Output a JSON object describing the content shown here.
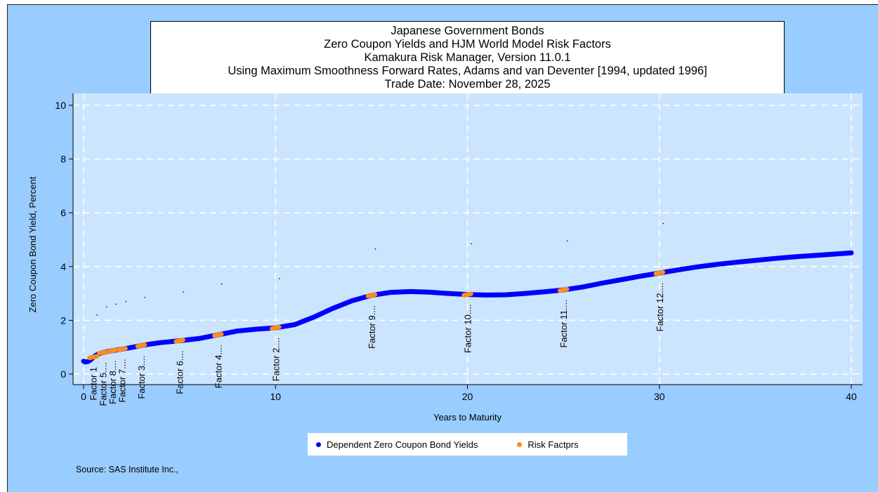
{
  "title_lines": [
    "Japanese Government Bonds",
    "Zero Coupon Yields and HJM World Model Risk Factors",
    "Kamakura Risk Manager, Version 11.0.1",
    "Using Maximum Smoothness Forward Rates, Adams and van Deventer [1994, updated 1996]",
    "Trade Date: November 28, 2025"
  ],
  "source": "Source: SAS Institute Inc.,",
  "colors": {
    "page_background": "#99ccff",
    "plot_background": "#cce5ff",
    "grid": "#ffffff",
    "curve": "#0000ff",
    "factor": "#ff8c1a"
  },
  "chart_data": {
    "type": "line",
    "xlabel": "Years to Maturity",
    "ylabel": "Zero Coupon Bond Yield, Percent",
    "xlim": [
      0,
      40
    ],
    "ylim": [
      0,
      10
    ],
    "x_ticks": [
      0,
      10,
      20,
      30,
      40
    ],
    "y_ticks": [
      0,
      2,
      4,
      6,
      8,
      10
    ],
    "grid": true,
    "legend_position": "bottom",
    "series": [
      {
        "name": "Dependent Zero Coupon Bond Yields",
        "color": "#0000ff",
        "x": [
          0,
          0.1,
          0.25,
          0.4,
          0.6,
          0.8,
          1.0,
          1.25,
          1.5,
          1.75,
          2.0,
          2.5,
          3.0,
          3.5,
          4.0,
          5.0,
          6.0,
          7.0,
          8.0,
          9.0,
          10.0,
          11.0,
          12.0,
          13.0,
          14.0,
          15.0,
          16.0,
          17.0,
          18.0,
          19.0,
          20.0,
          21.0,
          22.0,
          23.0,
          24.0,
          25.0,
          26.0,
          27.0,
          28.0,
          29.0,
          30.0,
          31.0,
          32.0,
          33.0,
          34.0,
          35.0,
          36.0,
          37.0,
          38.0,
          39.0,
          40.0
        ],
        "y": [
          0.48,
          0.45,
          0.47,
          0.55,
          0.68,
          0.76,
          0.8,
          0.84,
          0.87,
          0.9,
          0.93,
          0.99,
          1.06,
          1.12,
          1.17,
          1.24,
          1.32,
          1.46,
          1.6,
          1.67,
          1.72,
          1.84,
          2.12,
          2.45,
          2.73,
          2.93,
          3.04,
          3.07,
          3.05,
          3.0,
          2.96,
          2.94,
          2.95,
          3.0,
          3.06,
          3.13,
          3.24,
          3.38,
          3.51,
          3.64,
          3.76,
          3.88,
          3.99,
          4.08,
          4.16,
          4.23,
          4.3,
          4.36,
          4.41,
          4.46,
          4.51
        ]
      },
      {
        "name": "Risk Factprs",
        "color": "#ff8c1a",
        "x": [
          0.5,
          1.0,
          1.5,
          2.0,
          3.0,
          5.0,
          7.0,
          10.0,
          15.0,
          20.0,
          25.0,
          30.0
        ],
        "y": [
          0.63,
          0.8,
          0.87,
          0.93,
          1.06,
          1.24,
          1.46,
          1.72,
          2.93,
          2.96,
          3.13,
          3.76
        ]
      }
    ],
    "factor_labels": [
      {
        "label": "Factor 1",
        "x": 0.5
      },
      {
        "label": "Factor 5....",
        "x": 1.0
      },
      {
        "label": "Factor 8....",
        "x": 1.5
      },
      {
        "label": "Factor 7....",
        "x": 2.0
      },
      {
        "label": "Factor 3....",
        "x": 3.0
      },
      {
        "label": "Factor 6....",
        "x": 5.0
      },
      {
        "label": "Factor 4....",
        "x": 7.0
      },
      {
        "label": "Factor 2....",
        "x": 10.0
      },
      {
        "label": "Factor 9....",
        "x": 15.0
      },
      {
        "label": "Factor 10....",
        "x": 20.0
      },
      {
        "label": "Factor 11....",
        "x": 25.0
      },
      {
        "label": "Factor 12....",
        "x": 30.0
      }
    ],
    "stray_dots": [
      {
        "x": 0.7,
        "y": 2.2
      },
      {
        "x": 1.2,
        "y": 2.5
      },
      {
        "x": 1.7,
        "y": 2.6
      },
      {
        "x": 2.2,
        "y": 2.7
      },
      {
        "x": 3.2,
        "y": 2.85
      },
      {
        "x": 5.2,
        "y": 3.05
      },
      {
        "x": 7.2,
        "y": 3.35
      },
      {
        "x": 10.2,
        "y": 3.55
      },
      {
        "x": 15.2,
        "y": 4.65
      },
      {
        "x": 20.2,
        "y": 4.85
      },
      {
        "x": 25.2,
        "y": 4.95
      },
      {
        "x": 30.2,
        "y": 5.6
      }
    ]
  }
}
